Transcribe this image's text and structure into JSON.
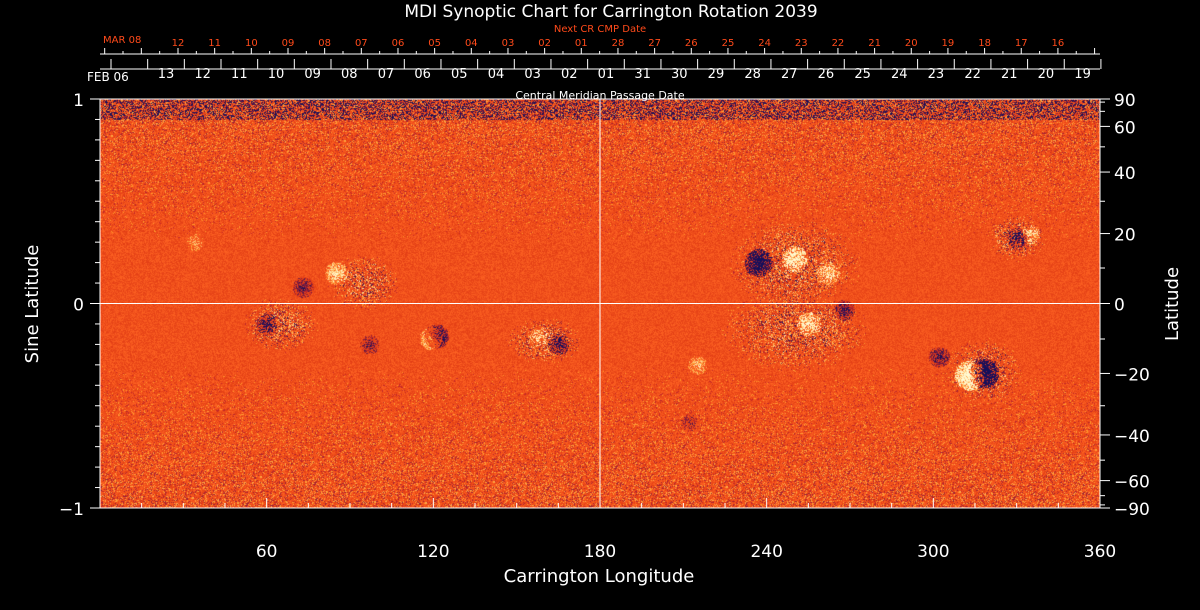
{
  "chart_data": {
    "type": "heatmap",
    "title": "MDI Synoptic Chart for Carrington Rotation 2039",
    "xlabel": "Carrington Longitude",
    "ylabel_left": "Sine Latitude",
    "ylabel_right": "Latitude",
    "xlim": [
      0,
      360
    ],
    "ylim": [
      -1,
      1
    ],
    "x_ticks": [
      60,
      120,
      180,
      240,
      300,
      360
    ],
    "y_ticks_left": [
      {
        "value": 1,
        "label": "1"
      },
      {
        "value": 0,
        "label": "0"
      },
      {
        "value": -1,
        "label": "−1"
      }
    ],
    "y_ticks_right_deg": [
      {
        "value": 90,
        "label": "90"
      },
      {
        "value": 60,
        "label": "60"
      },
      {
        "value": 40,
        "label": "40"
      },
      {
        "value": 20,
        "label": "20"
      },
      {
        "value": 0,
        "label": "0"
      },
      {
        "value": -20,
        "label": "−20"
      },
      {
        "value": -40,
        "label": "−40"
      },
      {
        "value": -60,
        "label": "−60"
      },
      {
        "value": -90,
        "label": "−90"
      }
    ],
    "cmp_axis": {
      "label": "Central Meridian Passage Date",
      "start_label": "FEB 06",
      "dates": [
        "13",
        "12",
        "11",
        "10",
        "09",
        "08",
        "07",
        "06",
        "05",
        "04",
        "03",
        "02",
        "01",
        "31",
        "30",
        "29",
        "28",
        "27",
        "26",
        "25",
        "24",
        "23",
        "22",
        "21",
        "20",
        "19"
      ]
    },
    "next_cmp_axis": {
      "label": "Next CR CMP Date",
      "start_label": "MAR 08",
      "dates": [
        "12",
        "11",
        "10",
        "09",
        "08",
        "07",
        "06",
        "05",
        "04",
        "03",
        "02",
        "01",
        "28",
        "27",
        "26",
        "25",
        "24",
        "23",
        "22",
        "21",
        "20",
        "19",
        "18",
        "17",
        "16"
      ]
    },
    "colors": {
      "background_field": "#f0501a",
      "negative_polarity": "#1a1060",
      "positive_polarity": "#fff4c0",
      "axes": "#ffffff",
      "next_cr_text": "#ff4a1a"
    },
    "active_regions": [
      {
        "lon": 237,
        "sinlat": 0.2,
        "polarity": "negative",
        "strength": 0.9
      },
      {
        "lon": 250,
        "sinlat": 0.22,
        "polarity": "positive",
        "strength": 0.8
      },
      {
        "lon": 262,
        "sinlat": 0.15,
        "polarity": "positive",
        "strength": 0.6
      },
      {
        "lon": 255,
        "sinlat": -0.1,
        "polarity": "positive",
        "strength": 0.7
      },
      {
        "lon": 268,
        "sinlat": -0.03,
        "polarity": "negative",
        "strength": 0.5
      },
      {
        "lon": 318,
        "sinlat": -0.34,
        "polarity": "negative",
        "strength": 1.0
      },
      {
        "lon": 313,
        "sinlat": -0.35,
        "polarity": "positive",
        "strength": 1.0
      },
      {
        "lon": 302,
        "sinlat": -0.26,
        "polarity": "negative",
        "strength": 0.5
      },
      {
        "lon": 330,
        "sinlat": 0.32,
        "polarity": "negative",
        "strength": 0.5
      },
      {
        "lon": 335,
        "sinlat": 0.34,
        "polarity": "positive",
        "strength": 0.4
      },
      {
        "lon": 121,
        "sinlat": -0.16,
        "polarity": "negative",
        "strength": 0.7
      },
      {
        "lon": 119,
        "sinlat": -0.17,
        "polarity": "positive",
        "strength": 0.6
      },
      {
        "lon": 85,
        "sinlat": 0.15,
        "polarity": "positive",
        "strength": 0.6
      },
      {
        "lon": 73,
        "sinlat": 0.08,
        "polarity": "negative",
        "strength": 0.5
      },
      {
        "lon": 60,
        "sinlat": -0.1,
        "polarity": "negative",
        "strength": 0.5
      },
      {
        "lon": 165,
        "sinlat": -0.2,
        "polarity": "negative",
        "strength": 0.5
      },
      {
        "lon": 158,
        "sinlat": -0.16,
        "polarity": "positive",
        "strength": 0.4
      },
      {
        "lon": 97,
        "sinlat": -0.2,
        "polarity": "negative",
        "strength": 0.4
      },
      {
        "lon": 215,
        "sinlat": -0.3,
        "polarity": "positive",
        "strength": 0.4
      },
      {
        "lon": 212,
        "sinlat": -0.58,
        "polarity": "negative",
        "strength": 0.3
      },
      {
        "lon": 34,
        "sinlat": 0.3,
        "polarity": "positive",
        "strength": 0.3
      }
    ]
  }
}
